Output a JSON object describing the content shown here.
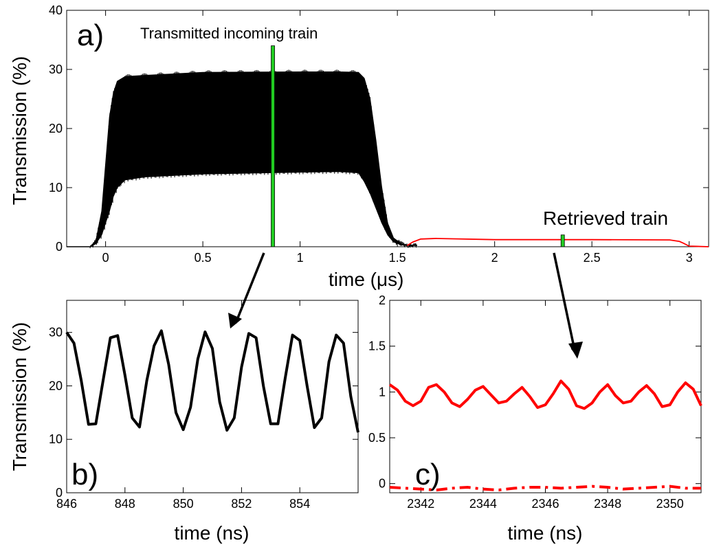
{
  "chart_data": [
    {
      "id": "a",
      "type": "line",
      "panel_label": "a)",
      "xlabel": "time (μs)",
      "ylabel": "Transmission (%)",
      "xlim": [
        -0.2,
        3.1
      ],
      "ylim": [
        0,
        40
      ],
      "xticks": [
        0,
        0.5,
        1,
        1.5,
        2,
        2.5,
        3
      ],
      "xtick_labels": [
        "0",
        "0.5",
        "1",
        "1.5",
        "2",
        "2.5",
        "3"
      ],
      "yticks": [
        0,
        10,
        20,
        30,
        40
      ],
      "ytick_labels": [
        "0",
        "10",
        "20",
        "30",
        "40"
      ],
      "series": [
        {
          "color": "#000000",
          "style": "filled-oscillation",
          "x": [
            -0.08,
            -0.05,
            -0.02,
            0.0,
            0.02,
            0.04,
            0.06,
            0.1,
            0.2,
            0.5,
            1.0,
            1.2,
            1.3,
            1.33,
            1.36,
            1.39,
            1.42,
            1.45,
            1.48,
            1.52,
            1.55,
            1.6
          ],
          "upper": [
            0,
            1,
            6,
            14,
            22,
            26,
            28,
            28.8,
            29.0,
            29.5,
            29.6,
            29.6,
            29.5,
            28.5,
            25,
            18,
            10,
            4,
            1.5,
            0.5,
            0.3,
            0.3
          ],
          "lower": [
            0,
            0.5,
            2,
            4,
            6,
            8.5,
            10,
            11.3,
            11.8,
            12.3,
            12.6,
            12.7,
            12.5,
            11,
            9,
            6.5,
            4,
            2,
            0.8,
            0.3,
            0.2,
            0.2
          ]
        },
        {
          "color": "#ff0000",
          "style": "line",
          "x": [
            1.55,
            1.58,
            1.62,
            1.7,
            2.0,
            2.5,
            2.9,
            2.95,
            2.97,
            3.0,
            3.1
          ],
          "y": [
            0.2,
            0.8,
            1.3,
            1.4,
            1.2,
            1.2,
            1.15,
            0.9,
            0.6,
            0.1,
            0.0
          ]
        }
      ],
      "markers": [
        {
          "x": 0.86,
          "y_top": 34,
          "color": "#22cc22"
        },
        {
          "x": 2.35,
          "y_top": 2.0,
          "color": "#22cc22"
        }
      ],
      "annotations": [
        "Transmitted incoming train",
        "Retrieved train"
      ]
    },
    {
      "id": "b",
      "type": "line",
      "panel_label": "b)",
      "xlabel": "time (ns)",
      "ylabel": "Transmission (%)",
      "xlim": [
        846,
        856
      ],
      "ylim": [
        0,
        36
      ],
      "xticks": [
        846,
        848,
        850,
        852,
        854
      ],
      "xtick_labels": [
        "846",
        "848",
        "850",
        "852",
        "854"
      ],
      "yticks": [
        0,
        10,
        20,
        30
      ],
      "ytick_labels": [
        "0",
        "10",
        "20",
        "30"
      ],
      "series": [
        {
          "color": "#000000",
          "x": [
            846.0,
            846.25,
            846.5,
            846.75,
            847.0,
            847.25,
            847.5,
            847.75,
            848.0,
            848.25,
            848.5,
            848.75,
            849.0,
            849.25,
            849.5,
            849.75,
            850.0,
            850.25,
            850.5,
            850.75,
            851.0,
            851.25,
            851.5,
            851.75,
            852.0,
            852.25,
            852.5,
            852.75,
            853.0,
            853.25,
            853.5,
            853.75,
            854.0,
            854.25,
            854.5,
            854.75,
            855.0,
            855.25,
            855.5,
            855.75,
            856.0
          ],
          "y": [
            30,
            28,
            21,
            12.8,
            12.9,
            21,
            29.0,
            29.4,
            22,
            14,
            12.3,
            21,
            27.5,
            30.3,
            24,
            15,
            11.8,
            16,
            25,
            30.1,
            27,
            17,
            11.7,
            14,
            23.5,
            29.8,
            29.0,
            20,
            12.9,
            12.9,
            21.5,
            29.5,
            28.5,
            20,
            12.2,
            14,
            24.5,
            29.5,
            28,
            18,
            11.3
          ]
        }
      ]
    },
    {
      "id": "c",
      "type": "line",
      "panel_label": "c)",
      "xlabel": "time (ns)",
      "ylabel": "",
      "xlim": [
        2341,
        2351
      ],
      "ylim": [
        -0.1,
        2
      ],
      "xticks": [
        2342,
        2344,
        2346,
        2348,
        2350
      ],
      "xtick_labels": [
        "2342",
        "2344",
        "2346",
        "2348",
        "2350"
      ],
      "yticks": [
        0,
        0.5,
        1,
        1.5,
        2
      ],
      "ytick_labels": [
        "0",
        "0.5",
        "1",
        "1.5",
        "2"
      ],
      "series": [
        {
          "color": "#ff0000",
          "style": "solid",
          "x": [
            2341.0,
            2341.25,
            2341.5,
            2341.75,
            2342.0,
            2342.25,
            2342.5,
            2342.75,
            2343.0,
            2343.25,
            2343.5,
            2343.75,
            2344.0,
            2344.25,
            2344.5,
            2344.75,
            2345.0,
            2345.25,
            2345.5,
            2345.75,
            2346.0,
            2346.25,
            2346.5,
            2346.75,
            2347.0,
            2347.25,
            2347.5,
            2347.75,
            2348.0,
            2348.25,
            2348.5,
            2348.75,
            2349.0,
            2349.25,
            2349.5,
            2349.75,
            2350.0,
            2350.25,
            2350.5,
            2350.75,
            2351.0
          ],
          "y": [
            1.08,
            1.02,
            0.9,
            0.85,
            0.9,
            1.05,
            1.08,
            1.0,
            0.88,
            0.84,
            0.92,
            1.02,
            1.06,
            0.97,
            0.88,
            0.9,
            0.98,
            1.05,
            0.95,
            0.83,
            0.86,
            0.98,
            1.12,
            1.03,
            0.85,
            0.82,
            0.88,
            1.0,
            1.08,
            0.96,
            0.88,
            0.9,
            1.0,
            1.07,
            0.98,
            0.84,
            0.86,
            1.0,
            1.1,
            1.03,
            0.85
          ]
        },
        {
          "color": "#ff0000",
          "style": "dashdot",
          "x": [
            2341.0,
            2341.5,
            2342.0,
            2342.5,
            2343.0,
            2343.5,
            2344.0,
            2344.5,
            2345.0,
            2345.5,
            2346.0,
            2346.5,
            2347.0,
            2347.5,
            2348.0,
            2348.5,
            2349.0,
            2349.5,
            2350.0,
            2350.5,
            2351.0
          ],
          "y": [
            -0.04,
            -0.05,
            -0.06,
            -0.07,
            -0.05,
            -0.04,
            -0.06,
            -0.07,
            -0.05,
            -0.04,
            -0.04,
            -0.05,
            -0.04,
            -0.03,
            -0.04,
            -0.06,
            -0.05,
            -0.04,
            -0.03,
            -0.05,
            -0.05
          ]
        }
      ]
    }
  ]
}
